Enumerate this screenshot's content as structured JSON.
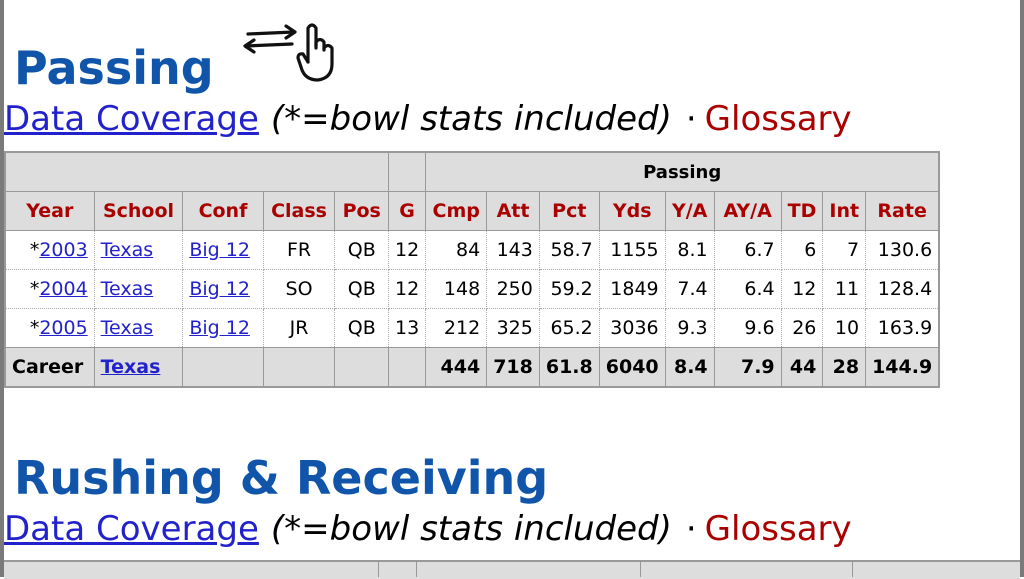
{
  "passing": {
    "title": "Passing",
    "data_coverage": "Data Coverage",
    "bowl_note": "(*=bowl stats included)",
    "separator": "·",
    "glossary": "Glossary",
    "group_header": "Passing",
    "columns": [
      "Year",
      "School",
      "Conf",
      "Class",
      "Pos",
      "G",
      "Cmp",
      "Att",
      "Pct",
      "Yds",
      "Y/A",
      "AY/A",
      "TD",
      "Int",
      "Rate"
    ],
    "rows": [
      {
        "mark": "*",
        "year": "2003",
        "school": "Texas",
        "conf": "Big 12",
        "cls": "FR",
        "pos": "QB",
        "g": "12",
        "cmp": "84",
        "att": "143",
        "pct": "58.7",
        "yds": "1155",
        "ya": "8.1",
        "aya": "6.7",
        "td": "6",
        "int": "7",
        "rate": "130.6"
      },
      {
        "mark": "*",
        "year": "2004",
        "school": "Texas",
        "conf": "Big 12",
        "cls": "SO",
        "pos": "QB",
        "g": "12",
        "cmp": "148",
        "att": "250",
        "pct": "59.2",
        "yds": "1849",
        "ya": "7.4",
        "aya": "6.4",
        "td": "12",
        "int": "11",
        "rate": "128.4"
      },
      {
        "mark": "*",
        "year": "2005",
        "school": "Texas",
        "conf": "Big 12",
        "cls": "JR",
        "pos": "QB",
        "g": "13",
        "cmp": "212",
        "att": "325",
        "pct": "65.2",
        "yds": "3036",
        "ya": "9.3",
        "aya": "9.6",
        "td": "26",
        "int": "10",
        "rate": "163.9"
      }
    ],
    "career": {
      "label": "Career",
      "school": "Texas",
      "cmp": "444",
      "att": "718",
      "pct": "61.8",
      "yds": "6040",
      "ya": "8.4",
      "aya": "7.9",
      "td": "44",
      "int": "28",
      "rate": "144.9"
    }
  },
  "rushing": {
    "title": "Rushing & Receiving",
    "data_coverage": "Data Coverage",
    "bowl_note": "(*=bowl stats included)",
    "separator": "·",
    "glossary": "Glossary"
  },
  "icons": {
    "scroll_hint": "swipe-hand-icon"
  }
}
